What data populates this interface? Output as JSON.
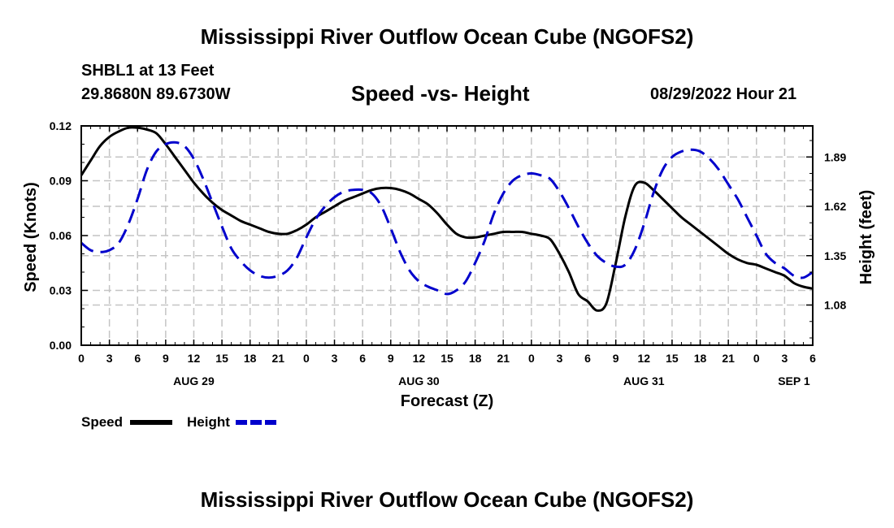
{
  "header": {
    "title": "Mississippi River Outflow Ocean Cube (NGOFS2)",
    "station": "SHBL1 at 13 Feet",
    "coords": "29.8680N  89.6730W",
    "subtitle": "Speed -vs- Height",
    "timestamp": "08/29/2022 Hour 21"
  },
  "footer": {
    "second_title": "Mississippi River Outflow Ocean Cube (NGOFS2)"
  },
  "chart_data": {
    "type": "line",
    "title": "Speed -vs- Height",
    "xlabel": "Forecast (Z)",
    "ylabel": "Speed (Knots)",
    "y2label": "Height (feet)",
    "xlim": [
      0,
      78
    ],
    "ylim": [
      0,
      0.12
    ],
    "y2lim": [
      0.86,
      2.06
    ],
    "x_tick_labels": [
      "0",
      "3",
      "6",
      "9",
      "12",
      "15",
      "18",
      "21",
      "0",
      "3",
      "6",
      "9",
      "12",
      "15",
      "18",
      "21",
      "0",
      "3",
      "6",
      "9",
      "12",
      "15",
      "18",
      "21",
      "0",
      "3",
      "6"
    ],
    "y_ticks": [
      0.0,
      0.03,
      0.06,
      0.09,
      0.12
    ],
    "y_tick_labels": [
      "0.00",
      "0.03",
      "0.06",
      "0.09",
      "0.12"
    ],
    "y2_ticks": [
      1.08,
      1.35,
      1.62,
      1.89
    ],
    "y2_tick_labels": [
      "1.08",
      "1.35",
      "1.62",
      "1.89"
    ],
    "date_labels": [
      {
        "hour": 12,
        "label": "AUG 29"
      },
      {
        "hour": 36,
        "label": "AUG 30"
      },
      {
        "hour": 60,
        "label": "AUG 31"
      },
      {
        "hour": 76,
        "label": "SEP 1"
      }
    ],
    "series": [
      {
        "name": "Speed",
        "axis": "left",
        "color": "#000000",
        "style": "solid",
        "x": [
          0,
          1,
          2,
          3,
          4,
          5,
          6,
          7,
          8,
          9,
          10,
          11,
          12,
          13,
          14,
          15,
          16,
          17,
          18,
          19,
          20,
          21,
          22,
          23,
          24,
          25,
          26,
          27,
          28,
          29,
          30,
          31,
          32,
          33,
          34,
          35,
          36,
          37,
          38,
          39,
          40,
          41,
          42,
          43,
          44,
          45,
          46,
          47,
          48,
          49,
          50,
          51,
          52,
          53,
          54,
          55,
          56,
          57,
          58,
          59,
          60,
          61,
          62,
          63,
          64,
          65,
          66,
          67,
          68,
          69,
          70,
          71,
          72,
          73,
          74,
          75,
          76,
          77,
          78
        ],
        "values": [
          0.093,
          0.101,
          0.109,
          0.114,
          0.117,
          0.119,
          0.119,
          0.118,
          0.116,
          0.11,
          0.103,
          0.096,
          0.089,
          0.083,
          0.078,
          0.074,
          0.071,
          0.068,
          0.066,
          0.064,
          0.062,
          0.061,
          0.061,
          0.063,
          0.066,
          0.07,
          0.073,
          0.076,
          0.079,
          0.081,
          0.083,
          0.085,
          0.086,
          0.086,
          0.085,
          0.083,
          0.08,
          0.077,
          0.072,
          0.066,
          0.061,
          0.059,
          0.059,
          0.06,
          0.061,
          0.062,
          0.062,
          0.062,
          0.061,
          0.06,
          0.058,
          0.05,
          0.04,
          0.028,
          0.024,
          0.019,
          0.023,
          0.045,
          0.07,
          0.087,
          0.089,
          0.085,
          0.08,
          0.075,
          0.07,
          0.066,
          0.062,
          0.058,
          0.054,
          0.05,
          0.047,
          0.045,
          0.044,
          0.042,
          0.04,
          0.038,
          0.034,
          0.032,
          0.031
        ]
      },
      {
        "name": "Height",
        "axis": "right",
        "color": "#0000cc",
        "style": "dashed",
        "x": [
          0,
          1,
          2,
          3,
          4,
          5,
          6,
          7,
          8,
          9,
          10,
          11,
          12,
          13,
          14,
          15,
          16,
          17,
          18,
          19,
          20,
          21,
          22,
          23,
          24,
          25,
          26,
          27,
          28,
          29,
          30,
          31,
          32,
          33,
          34,
          35,
          36,
          37,
          38,
          39,
          40,
          41,
          42,
          43,
          44,
          45,
          46,
          47,
          48,
          49,
          50,
          51,
          52,
          53,
          54,
          55,
          56,
          57,
          58,
          59,
          60,
          61,
          62,
          63,
          64,
          65,
          66,
          67,
          68,
          69,
          70,
          71,
          72,
          73,
          74,
          75,
          76,
          77,
          78
        ],
        "values": [
          1.42,
          1.38,
          1.37,
          1.38,
          1.42,
          1.52,
          1.66,
          1.82,
          1.92,
          1.96,
          1.97,
          1.95,
          1.88,
          1.77,
          1.64,
          1.51,
          1.39,
          1.32,
          1.27,
          1.24,
          1.23,
          1.24,
          1.27,
          1.34,
          1.45,
          1.55,
          1.62,
          1.67,
          1.7,
          1.71,
          1.71,
          1.69,
          1.62,
          1.5,
          1.37,
          1.27,
          1.21,
          1.18,
          1.16,
          1.14,
          1.16,
          1.21,
          1.31,
          1.43,
          1.58,
          1.69,
          1.76,
          1.79,
          1.8,
          1.79,
          1.77,
          1.7,
          1.61,
          1.51,
          1.42,
          1.35,
          1.31,
          1.29,
          1.3,
          1.38,
          1.52,
          1.69,
          1.82,
          1.89,
          1.92,
          1.93,
          1.92,
          1.88,
          1.82,
          1.74,
          1.66,
          1.56,
          1.46,
          1.36,
          1.31,
          1.28,
          1.24,
          1.23,
          1.26
        ]
      }
    ]
  }
}
